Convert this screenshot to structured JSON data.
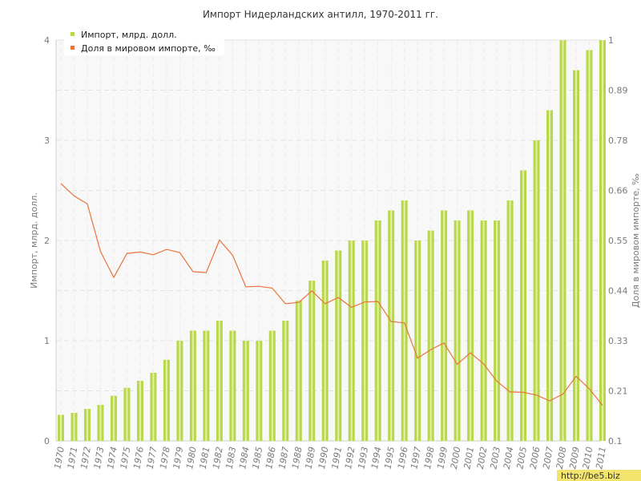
{
  "chart_data": {
    "title": "Импорт Нидерландских антилл, 1970-2011 гг.",
    "type": "bar+line",
    "x": [
      1970,
      1971,
      1972,
      1973,
      1974,
      1975,
      1976,
      1977,
      1978,
      1979,
      1980,
      1981,
      1982,
      1983,
      1984,
      1985,
      1986,
      1987,
      1988,
      1989,
      1990,
      1991,
      1992,
      1993,
      1994,
      1995,
      1996,
      1997,
      1998,
      1999,
      2000,
      2001,
      2002,
      2003,
      2004,
      2005,
      2006,
      2007,
      2008,
      2009,
      2010,
      2011
    ],
    "y_left": {
      "label": "Импорт, млрд. долл.",
      "ticks": [
        "0",
        "1",
        "2",
        "3",
        "4"
      ],
      "range": [
        0,
        4
      ]
    },
    "y_right": {
      "label": "Доля в мировом импорте, ‰",
      "ticks": [
        "0.1",
        "0.21",
        "0.33",
        "0.44",
        "0.55",
        "0.66",
        "0.78",
        "0.89",
        "1"
      ],
      "range": [
        0.1,
        1.0
      ]
    },
    "grid": true,
    "legend_placement": "top-left",
    "series": [
      {
        "name": "Импорт, млрд. долл.",
        "type": "bar",
        "axis": "left",
        "color": "#b8d84a",
        "values": [
          0.26,
          0.28,
          0.32,
          0.36,
          0.45,
          0.53,
          0.6,
          0.68,
          0.81,
          1.0,
          1.1,
          1.1,
          1.2,
          1.1,
          1.0,
          1.0,
          1.1,
          1.2,
          1.4,
          1.6,
          1.8,
          1.9,
          2.0,
          2.0,
          2.2,
          2.3,
          2.4,
          2.0,
          2.1,
          2.3,
          2.2,
          2.3,
          2.2,
          2.2,
          2.4,
          2.7,
          3.0,
          3.3,
          4.0,
          3.7,
          3.9,
          4.0
        ]
      },
      {
        "name": "Доля в мировом импорте, ‰",
        "type": "line",
        "axis": "right",
        "color": "#e8743b",
        "values": [
          0.678,
          0.65,
          0.632,
          0.525,
          0.467,
          0.521,
          0.524,
          0.518,
          0.53,
          0.523,
          0.48,
          0.478,
          0.551,
          0.517,
          0.446,
          0.447,
          0.443,
          0.408,
          0.411,
          0.437,
          0.408,
          0.422,
          0.4,
          0.412,
          0.413,
          0.368,
          0.365,
          0.286,
          0.305,
          0.32,
          0.272,
          0.298,
          0.273,
          0.234,
          0.21,
          0.209,
          0.203,
          0.19,
          0.205,
          0.245,
          0.217,
          0.18
        ]
      }
    ]
  },
  "watermark": "http://be5.biz"
}
